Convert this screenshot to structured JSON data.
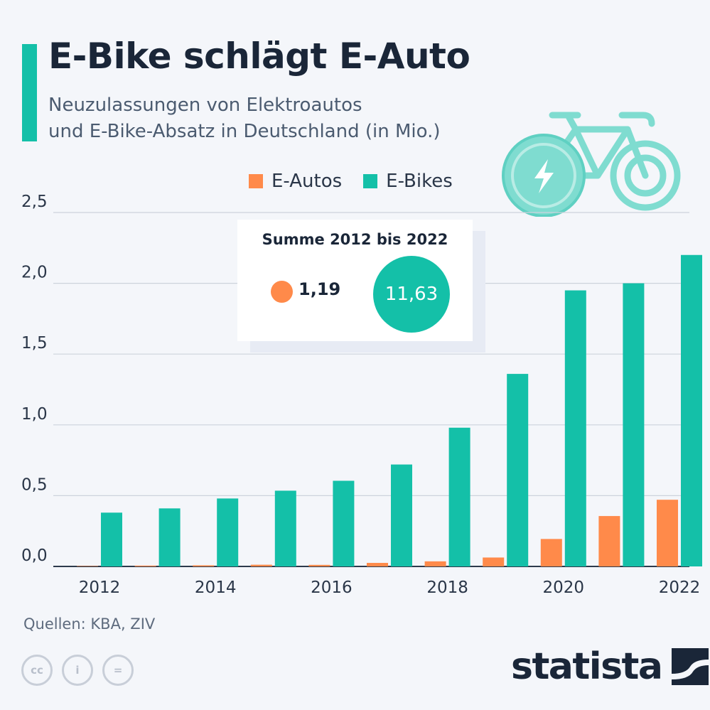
{
  "header": {
    "title": "E-Bike schlägt E-Auto",
    "subtitle_line1": "Neuzulassungen von Elektroautos",
    "subtitle_line2": "und E-Bike-Absatz in Deutschland (in Mio.)"
  },
  "legend": [
    {
      "label": "E-Autos",
      "color": "#ff8a4a"
    },
    {
      "label": "E-Bikes",
      "color": "#14c0a8"
    }
  ],
  "summary": {
    "title": "Summe 2012 bis 2022",
    "e_autos_total": "1,19",
    "e_bikes_total": "11,63"
  },
  "chart_data": {
    "type": "bar",
    "title": "E-Bike schlägt E-Auto",
    "categories": [
      "2012",
      "2013",
      "2014",
      "2015",
      "2016",
      "2017",
      "2018",
      "2019",
      "2020",
      "2021",
      "2022"
    ],
    "x_tick_labels": [
      "2012",
      "2014",
      "2016",
      "2018",
      "2020",
      "2022"
    ],
    "y_ticks": [
      "0,0",
      "0,5",
      "1,0",
      "1,5",
      "2,0",
      "2,5"
    ],
    "y_tick_values": [
      0,
      0.5,
      1.0,
      1.5,
      2.0,
      2.5
    ],
    "ylim": [
      0,
      2.5
    ],
    "grid": true,
    "legend_position": "top",
    "series": [
      {
        "name": "E-Autos",
        "color": "#ff8a4a",
        "values": [
          0.003,
          0.006,
          0.008,
          0.012,
          0.011,
          0.025,
          0.036,
          0.063,
          0.194,
          0.356,
          0.471
        ]
      },
      {
        "name": "E-Bikes",
        "color": "#14c0a8",
        "values": [
          0.38,
          0.41,
          0.48,
          0.535,
          0.605,
          0.72,
          0.98,
          1.36,
          1.95,
          2.0,
          2.2
        ]
      }
    ]
  },
  "footer": {
    "source": "Quellen: KBA, ZIV",
    "cc_icons": [
      "creative-commons-icon",
      "attribution-icon",
      "no-derivatives-icon"
    ],
    "cc_glyphs": [
      "cc",
      "i",
      "="
    ],
    "brand": "statista"
  },
  "decorations": {
    "illustration": "e-bike-icon"
  }
}
